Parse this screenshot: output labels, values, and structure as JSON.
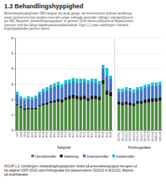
{
  "chart_data": [
    {
      "type": "bar",
      "stacked": true,
      "grid": true,
      "legend": "bottom",
      "title": "1.3 Behandlingshyppighed",
      "subtitle": "Behandlingshyppigheden (BH) angiver det antal gange, det konventionelt dyrkede landbrugs-\nareal i gennemsnit kan sprøjtes med den solgte mængde pesticider udbragt i standarddoserin-\nger (BI). Begrebet „behandlingshyppighed“ er gennem 30 år blevet publiceret af Miljøstyrelsen\nsammen med den årlige bekæmpelsesmiddelstatistik. Figur 1.2 viser udviklingen i behand-\nlingshyppigheden gennem årene.",
      "caption": "FIGUR 1.2: Udviklingen i behandlingshyppigheden fordelt på anvendelsesgrupper beregnet ud\nfra salgstal (1997-2022) samt forbrugsdata (for planperioderne 2010/11 til 2021/22). Baseret\npå omdriftarealer.",
      "xlabel": "Salgstal",
      "categories": [
        "1997",
        "1998",
        "1999",
        "2000",
        "2001",
        "2002",
        "2003",
        "2004",
        "2005",
        "2006",
        "2007",
        "2008",
        "2009",
        "2010",
        "2011",
        "2012",
        "2013",
        "2014",
        "2015",
        "2016",
        "2017",
        "2018",
        "2019",
        "2020",
        "2021",
        "2022"
      ],
      "series": [
        {
          "name": "Ukrudtsmidler",
          "color": "#4c8c3f",
          "values": [
            1.6,
            1.45,
            1.3,
            1.35,
            1.35,
            1.35,
            1.55,
            1.6,
            1.65,
            1.75,
            1.8,
            1.85,
            1.8,
            1.95,
            2.0,
            2.05,
            2.0,
            1.95,
            2.0,
            1.9,
            2.0,
            2.0,
            1.95,
            3.0,
            2.3,
            2.2
          ]
        },
        {
          "name": "Vækstreg.",
          "color": "#1a1a1a",
          "values": [
            0.1,
            0.1,
            0.1,
            0.1,
            0.1,
            0.1,
            0.1,
            0.15,
            0.15,
            0.15,
            0.15,
            0.2,
            0.2,
            0.2,
            0.25,
            0.25,
            0.25,
            0.25,
            0.25,
            0.2,
            0.25,
            0.25,
            0.25,
            0.25,
            0.3,
            0.3
          ]
        },
        {
          "name": "Svampemidler",
          "color": "#4472c4",
          "values": [
            0.6,
            0.5,
            0.55,
            0.6,
            0.55,
            0.65,
            0.7,
            0.8,
            0.8,
            0.85,
            0.9,
            0.9,
            0.8,
            0.9,
            0.85,
            0.9,
            0.85,
            0.9,
            0.9,
            0.95,
            0.9,
            0.85,
            0.8,
            0.8,
            0.95,
            0.85
          ]
        },
        {
          "name": "Insektmidler",
          "color": "#00c8d4",
          "values": [
            0.2,
            0.15,
            0.15,
            0.15,
            0.15,
            0.15,
            0.15,
            0.15,
            0.2,
            0.2,
            0.2,
            0.2,
            0.2,
            0.2,
            0.2,
            0.2,
            0.25,
            0.25,
            0.2,
            0.2,
            0.2,
            0.25,
            0.2,
            0.2,
            0.5,
            0.2
          ]
        }
      ],
      "ylim": [
        0,
        6
      ],
      "yticks": [
        0,
        1,
        2,
        3,
        4,
        5,
        6
      ]
    },
    {
      "type": "bar",
      "stacked": true,
      "grid": true,
      "xlabel": "Forbrugsdata",
      "categories": [
        "2010/11",
        "2011/12",
        "2012/13",
        "2013/14",
        "2014/15",
        "2015/16",
        "2016/17",
        "2017/18",
        "2018/19",
        "2019/20",
        "2020/21",
        "2021/22"
      ],
      "series": [
        {
          "name": "Ukrudtsmidler",
          "color": "#4c8c3f",
          "values": [
            1.65,
            1.6,
            1.65,
            1.6,
            1.55,
            1.7,
            1.7,
            1.75,
            1.8,
            1.85,
            1.85,
            1.9
          ]
        },
        {
          "name": "Vækstreg.",
          "color": "#1a1a1a",
          "values": [
            0.2,
            0.2,
            0.2,
            0.2,
            0.2,
            0.2,
            0.2,
            0.25,
            0.25,
            0.25,
            0.25,
            0.25
          ]
        },
        {
          "name": "Svampemidler",
          "color": "#4472c4",
          "values": [
            0.65,
            0.7,
            0.75,
            0.75,
            0.7,
            0.75,
            0.75,
            0.75,
            0.8,
            0.8,
            0.8,
            0.8
          ]
        },
        {
          "name": "Insektmidler",
          "color": "#00c8d4",
          "values": [
            0.2,
            0.2,
            0.2,
            0.2,
            0.2,
            0.15,
            0.2,
            0.2,
            0.15,
            0.2,
            0.2,
            0.2
          ]
        }
      ],
      "ylim": [
        0,
        6
      ],
      "yticks": [
        0,
        1,
        2,
        3,
        4,
        5,
        6
      ]
    }
  ]
}
